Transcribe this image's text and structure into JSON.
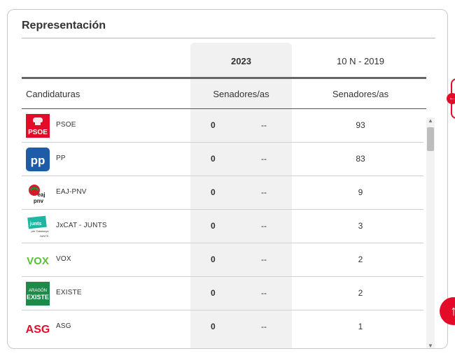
{
  "card": {
    "title": "Representación"
  },
  "columns": {
    "year_current": "2023",
    "year_previous": "10 N - 2019",
    "candidaturas": "Candidaturas",
    "senadores_current": "Senadores/as",
    "senadores_previous": "Senadores/as"
  },
  "rows": [
    {
      "party": "PSOE",
      "logo": "psoe-logo",
      "logo_text": "PSOE",
      "senadores_2023": "0",
      "diff": "--",
      "senadores_2019": "93"
    },
    {
      "party": "PP",
      "logo": "pp-logo",
      "logo_text": "pp",
      "senadores_2023": "0",
      "diff": "--",
      "senadores_2019": "83"
    },
    {
      "party": "EAJ-PNV",
      "logo": "eaj-pnv-logo",
      "logo_text": "eaj pnv",
      "senadores_2023": "0",
      "diff": "--",
      "senadores_2019": "9"
    },
    {
      "party": "JxCAT - JUNTS",
      "logo": "junts-logo",
      "logo_text": "junts per Catalunya JUNTS",
      "senadores_2023": "0",
      "diff": "--",
      "senadores_2019": "3"
    },
    {
      "party": "VOX",
      "logo": "vox-logo",
      "logo_text": "VOX",
      "senadores_2023": "0",
      "diff": "--",
      "senadores_2019": "2"
    },
    {
      "party": "EXISTE",
      "logo": "existe-logo",
      "logo_text": "ARAGÓN EXISTE",
      "senadores_2023": "0",
      "diff": "--",
      "senadores_2019": "2"
    },
    {
      "party": "ASG",
      "logo": "asg-logo",
      "logo_text": "ASG",
      "senadores_2023": "0",
      "diff": "--",
      "senadores_2019": "1"
    }
  ],
  "colors": {
    "accent": "#e30b28",
    "highlight_column": "#f1f1f1",
    "psoe": "#e30b28",
    "pp": "#1d5ca8",
    "vox": "#5ac035",
    "existe": "#1e8a4a",
    "junts": "#1fb7a4"
  },
  "icons": {
    "scroll_up": "chevron-up-icon",
    "scroll_down": "chevron-down-icon",
    "fab": "arrow-up-icon",
    "side_tab": "arrow-left-icon"
  }
}
